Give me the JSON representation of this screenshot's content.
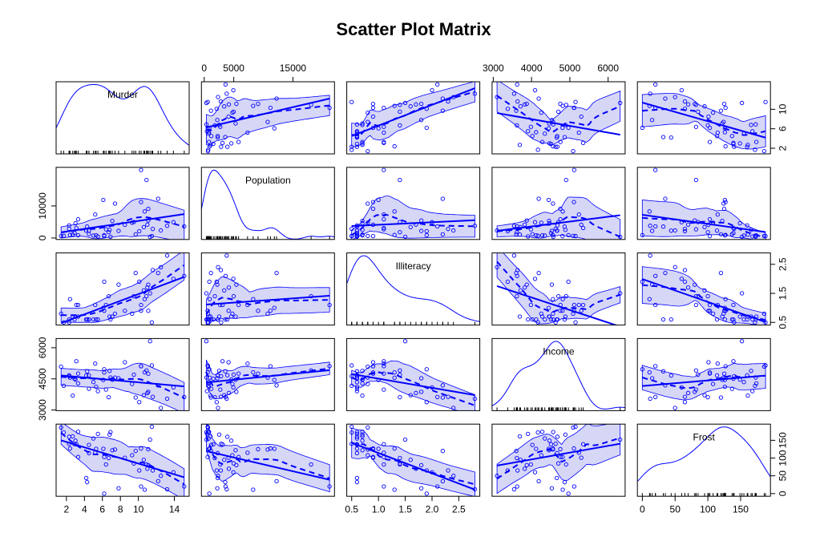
{
  "chart_data": {
    "type": "scatter_matrix",
    "title": "Scatter Plot Matrix",
    "color": "#0000ff",
    "band_color": "rgba(70,70,220,0.22)",
    "variables": [
      {
        "name": "Murder",
        "values": [
          15.1,
          11.3,
          7.8,
          10.1,
          10.3,
          6.8,
          3.1,
          6.2,
          10.7,
          13.9,
          6.2,
          5.3,
          10.3,
          7.1,
          2.3,
          4.5,
          10.6,
          13.2,
          2.7,
          8.5,
          3.3,
          11.1,
          2.3,
          12.5,
          9.3,
          5.0,
          2.9,
          11.5,
          3.3,
          5.2,
          9.7,
          10.9,
          11.1,
          1.4,
          7.4,
          6.4,
          4.2,
          6.1,
          2.4,
          11.6,
          1.7,
          11.0,
          12.2,
          4.5,
          5.5,
          9.5,
          4.3,
          6.7,
          3.0,
          6.9
        ],
        "xlim": [
          0.85,
          15.65
        ],
        "xticks": [
          2,
          4,
          6,
          8,
          10,
          14
        ],
        "yticks": [
          2,
          6,
          10
        ]
      },
      {
        "name": "Population",
        "values": [
          3615,
          365,
          2212,
          2110,
          21198,
          2541,
          3100,
          579,
          8277,
          4931,
          868,
          813,
          11197,
          5313,
          2861,
          2280,
          3387,
          3806,
          1058,
          4122,
          5814,
          9111,
          3921,
          2341,
          4767,
          746,
          1544,
          590,
          812,
          7333,
          1144,
          18076,
          5441,
          637,
          10735,
          2715,
          2284,
          11860,
          931,
          2816,
          681,
          4173,
          12237,
          1203,
          472,
          4981,
          3559,
          1799,
          4589,
          376
        ],
        "xlim": [
          -468,
          22031
        ],
        "xticks": [
          0,
          5000,
          15000
        ],
        "yticks": [
          0,
          10000
        ]
      },
      {
        "name": "Illiteracy",
        "values": [
          2.1,
          1.5,
          1.8,
          1.9,
          1.1,
          0.7,
          1.1,
          0.9,
          1.3,
          2.0,
          1.9,
          0.6,
          0.9,
          0.7,
          0.5,
          0.6,
          1.6,
          2.8,
          0.7,
          0.9,
          1.1,
          0.9,
          0.6,
          2.4,
          0.8,
          0.6,
          0.6,
          0.5,
          0.7,
          1.1,
          2.2,
          1.4,
          1.8,
          0.8,
          0.8,
          1.1,
          0.6,
          1.0,
          1.3,
          2.3,
          0.5,
          1.7,
          2.2,
          0.6,
          0.6,
          1.4,
          0.6,
          1.4,
          0.7,
          0.6
        ],
        "xlim": [
          0.408,
          2.892
        ],
        "xticks": [
          0.5,
          {
            "value": 1,
            "label": "1.0"
          },
          1.5,
          {
            "value": 2,
            "label": "2.0"
          },
          2.5
        ],
        "yticks": [
          0.5,
          1.5,
          2.5
        ]
      },
      {
        "name": "Income",
        "values": [
          3624,
          6315,
          4530,
          3378,
          5114,
          4884,
          5348,
          4809,
          4815,
          4091,
          4963,
          4119,
          5107,
          4458,
          4628,
          4669,
          3712,
          3545,
          3694,
          5299,
          4755,
          4751,
          4675,
          3098,
          4254,
          4347,
          4508,
          5149,
          4281,
          5237,
          3601,
          4903,
          3875,
          5087,
          4561,
          3983,
          4660,
          4449,
          4558,
          3635,
          4167,
          3821,
          4188,
          4022,
          3907,
          4701,
          4864,
          3617,
          4468,
          4566
        ],
        "xlim": [
          2969,
          6444
        ],
        "xticks": [
          3000,
          4000,
          5000,
          6000
        ],
        "yticks": [
          3000,
          4500,
          6000
        ]
      },
      {
        "name": "Frost",
        "values": [
          20,
          152,
          15,
          65,
          20,
          166,
          139,
          103,
          11,
          60,
          0,
          126,
          127,
          122,
          140,
          114,
          95,
          12,
          161,
          101,
          103,
          125,
          160,
          50,
          108,
          155,
          139,
          188,
          174,
          115,
          120,
          82,
          80,
          186,
          124,
          82,
          44,
          126,
          127,
          65,
          172,
          70,
          35,
          137,
          168,
          85,
          32,
          100,
          149,
          173
        ],
        "xlim": [
          -7.52,
          195.52
        ],
        "xticks": [
          0,
          50,
          100,
          150
        ],
        "yticks": [
          0,
          50,
          100,
          150
        ]
      }
    ]
  }
}
